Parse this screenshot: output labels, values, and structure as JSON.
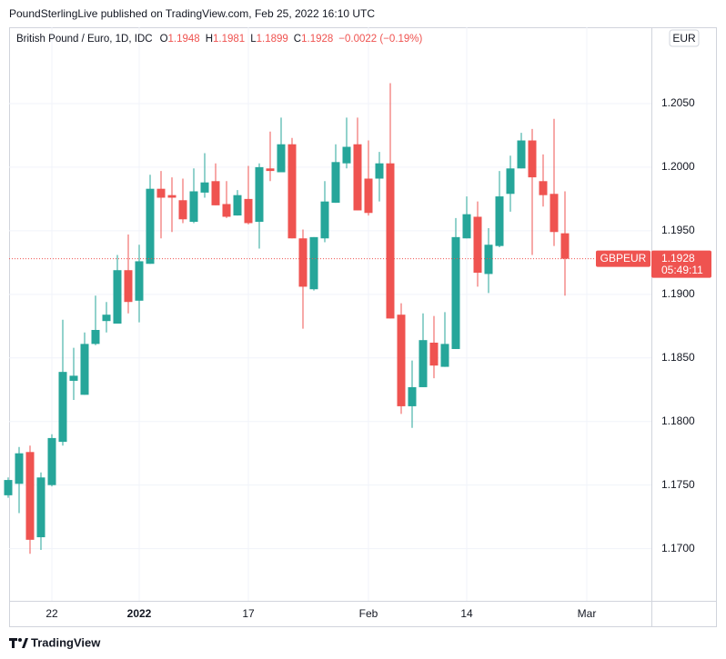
{
  "header": {
    "published": "PoundSterlingLive published on TradingView.com, Feb 25, 2022 16:10 UTC"
  },
  "footer": {
    "brand": "TradingView"
  },
  "chart_data": {
    "type": "candlestick",
    "title": "British Pound / Euro, 1D, IDC",
    "ohlc_letters": [
      "O",
      "H",
      "L",
      "C"
    ],
    "change_label": "−0.0022 (−0.19%)",
    "symbol": "GBPEUR",
    "countdown": "05:49:11",
    "currency": "EUR",
    "up_color": "#26a69a",
    "down_color": "#ef5350",
    "grid": true,
    "categories": [
      null,
      null,
      null,
      null,
      "22",
      null,
      null,
      null,
      null,
      null,
      null,
      null,
      "2022",
      null,
      null,
      null,
      null,
      null,
      null,
      null,
      null,
      null,
      "17",
      null,
      null,
      null,
      null,
      null,
      null,
      null,
      null,
      null,
      null,
      "Feb",
      null,
      null,
      null,
      null,
      null,
      null,
      null,
      null,
      "14",
      null,
      null,
      null,
      null,
      null,
      null,
      null,
      null,
      null,
      null,
      "Mar"
    ],
    "open": [
      1.1742,
      1.1751,
      1.1776,
      1.1709,
      1.175,
      1.1784,
      1.1832,
      1.1821,
      1.1861,
      1.1879,
      1.1877,
      1.1919,
      1.1895,
      1.1924,
      1.1983,
      1.1978,
      1.1974,
      1.1957,
      1.198,
      1.1989,
      1.1971,
      1.1962,
      1.1975,
      1.1957,
      1.1999,
      1.1996,
      1.2018,
      1.1944,
      1.1904,
      1.1944,
      1.1972,
      1.2003,
      1.2018,
      1.1991,
      1.1991,
      1.2003,
      1.1884,
      1.1812,
      1.1827,
      1.1862,
      1.1843,
      1.1857,
      1.1944,
      1.1961,
      1.1916,
      1.1938,
      1.1979,
      1.1999,
      1.2021,
      1.1989,
      1.1979,
      1.1948,
      null,
      null
    ],
    "high": [
      1.1756,
      1.178,
      1.1781,
      1.176,
      1.179,
      1.188,
      1.1858,
      1.187,
      1.1899,
      1.1894,
      1.1931,
      1.1947,
      1.1939,
      1.1994,
      1.1997,
      1.1992,
      1.1991,
      1.1999,
      1.2011,
      1.2003,
      1.1989,
      1.1982,
      1.2001,
      1.2003,
      1.2028,
      1.2039,
      1.2023,
      1.1951,
      1.1945,
      1.1989,
      1.2018,
      1.2039,
      1.2039,
      1.2021,
      1.2012,
      1.2066,
      1.1893,
      1.1848,
      1.1885,
      1.1883,
      1.1886,
      1.196,
      1.1977,
      1.1973,
      1.1952,
      1.1997,
      1.2009,
      1.2027,
      1.203,
      1.201,
      1.2038,
      1.1981,
      null,
      null
    ],
    "low": [
      1.174,
      1.1728,
      1.1696,
      1.1699,
      1.1749,
      1.1781,
      1.1817,
      1.1821,
      1.186,
      1.187,
      1.1877,
      1.1885,
      1.1878,
      1.1924,
      1.1944,
      1.1949,
      1.1956,
      1.1956,
      1.1976,
      1.197,
      1.196,
      1.1962,
      1.1955,
      1.1936,
      1.1989,
      1.1996,
      1.1944,
      1.1873,
      1.1903,
      1.1941,
      1.1972,
      1.1999,
      1.1966,
      1.1962,
      1.1973,
      1.1881,
      1.1806,
      1.1795,
      1.1827,
      1.1834,
      1.1843,
      1.1857,
      1.1944,
      1.1906,
      1.1901,
      1.1937,
      1.1965,
      1.1999,
      1.1931,
      1.1969,
      1.1938,
      1.1899,
      null,
      null
    ],
    "close": [
      1.1754,
      1.1775,
      1.1707,
      1.1756,
      1.1787,
      1.1839,
      1.1836,
      1.1861,
      1.1872,
      1.1884,
      1.1919,
      1.1894,
      1.1926,
      1.1983,
      1.1976,
      1.1976,
      1.1959,
      1.1981,
      1.1988,
      1.197,
      1.1961,
      1.1978,
      1.1956,
      1.2,
      1.1997,
      1.2018,
      1.1944,
      1.1906,
      1.1945,
      1.1973,
      1.2004,
      1.2016,
      1.1966,
      1.1964,
      1.2003,
      1.1881,
      1.1812,
      1.1827,
      1.1864,
      1.1844,
      1.1861,
      1.1945,
      1.1963,
      1.1917,
      1.1939,
      1.1977,
      1.1999,
      1.2021,
      1.1992,
      1.1978,
      1.1949,
      1.1928,
      null,
      null
    ],
    "ylim": [
      1.1659,
      1.211
    ],
    "yticks": [
      {
        "value": 1.205,
        "label": "1.2050"
      },
      {
        "value": 1.2,
        "label": "1.2000"
      },
      {
        "value": 1.195,
        "label": "1.1950"
      },
      {
        "value": 1.19,
        "label": "1.1900"
      },
      {
        "value": 1.185,
        "label": "1.1850"
      },
      {
        "value": 1.18,
        "label": "1.1800"
      },
      {
        "value": 1.175,
        "label": "1.1750"
      },
      {
        "value": 1.17,
        "label": "1.1700"
      }
    ]
  }
}
